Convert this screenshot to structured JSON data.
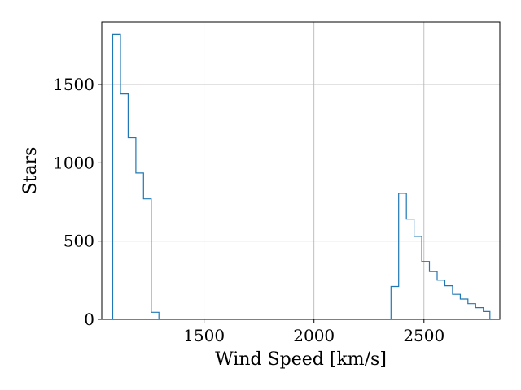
{
  "chart_data": {
    "type": "histogram",
    "title": "",
    "xlabel": "Wind Speed [km/s]",
    "ylabel": "Stars",
    "xlim": [
      1100,
      2800
    ],
    "ylim": [
      0,
      1900
    ],
    "xticks": [
      1500,
      2000,
      2500
    ],
    "yticks": [
      0,
      500,
      1000,
      1500
    ],
    "grid": true,
    "series_color": "#1f77b4",
    "bins": [
      {
        "x0": 1085,
        "x1": 1120,
        "count": 1820
      },
      {
        "x0": 1120,
        "x1": 1155,
        "count": 1440
      },
      {
        "x0": 1155,
        "x1": 1190,
        "count": 1160
      },
      {
        "x0": 1190,
        "x1": 1225,
        "count": 935
      },
      {
        "x0": 1225,
        "x1": 1260,
        "count": 770
      },
      {
        "x0": 1260,
        "x1": 1295,
        "count": 45
      },
      {
        "x0": 2350,
        "x1": 2385,
        "count": 210
      },
      {
        "x0": 2385,
        "x1": 2420,
        "count": 805
      },
      {
        "x0": 2420,
        "x1": 2455,
        "count": 640
      },
      {
        "x0": 2455,
        "x1": 2490,
        "count": 530
      },
      {
        "x0": 2490,
        "x1": 2525,
        "count": 370
      },
      {
        "x0": 2525,
        "x1": 2560,
        "count": 305
      },
      {
        "x0": 2560,
        "x1": 2595,
        "count": 250
      },
      {
        "x0": 2595,
        "x1": 2630,
        "count": 215
      },
      {
        "x0": 2630,
        "x1": 2665,
        "count": 160
      },
      {
        "x0": 2665,
        "x1": 2700,
        "count": 130
      },
      {
        "x0": 2700,
        "x1": 2735,
        "count": 100
      },
      {
        "x0": 2735,
        "x1": 2770,
        "count": 75
      },
      {
        "x0": 2770,
        "x1": 2800,
        "count": 50
      }
    ]
  }
}
